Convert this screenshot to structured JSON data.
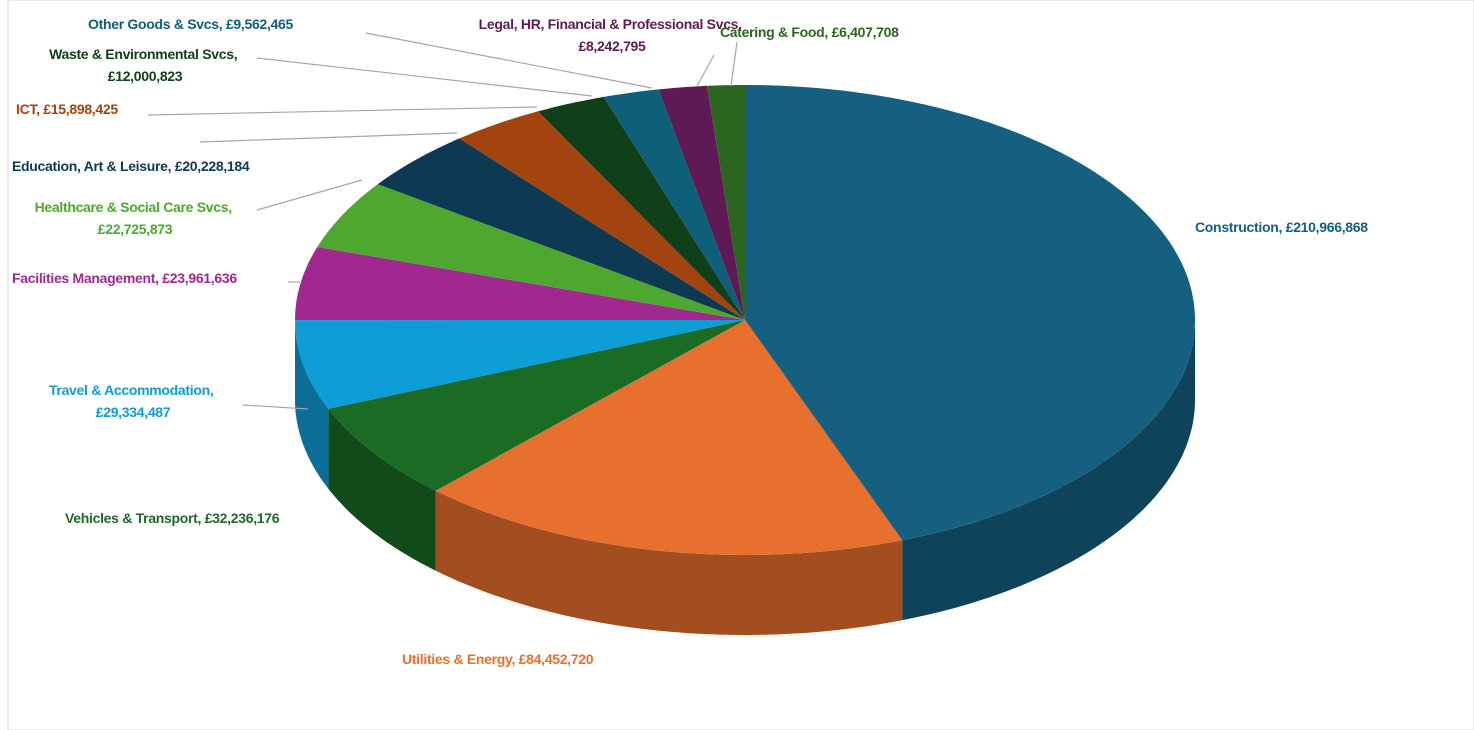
{
  "chart_data": {
    "type": "pie3d",
    "categories": [
      "Construction",
      "Utilities & Energy",
      "Vehicles & Transport",
      "Travel & Accommodation",
      "Facilities Management",
      "Healthcare & Social Care Svcs",
      "Education, Art & Leisure",
      "ICT",
      "Waste & Environmental Svcs",
      "Other Goods & Svcs",
      "Legal, HR, Financial & Professional Svcs",
      "Catering & Food"
    ],
    "values": [
      210966868,
      84452720,
      32236176,
      29334487,
      23961636,
      22725873,
      20228184,
      15898425,
      12000823,
      9562465,
      8242795,
      6407708
    ],
    "value_labels": [
      "£210,966,868",
      "£84,452,720",
      "£32,236,176",
      "£29,334,487",
      "£23,961,636",
      "£22,725,873",
      "£20,228,184",
      "£15,898,425",
      "£12,000,823",
      "£9,562,465",
      "£8,242,795",
      "£6,407,708"
    ],
    "label_separator": ", ",
    "colors": [
      "#155f80",
      "#e8702f",
      "#1a6b23",
      "#0f9dd6",
      "#a0288f",
      "#4ea72e",
      "#0d3a52",
      "#a3430f",
      "#10401a",
      "#0e5f7a",
      "#5e1a55",
      "#2b6520"
    ],
    "label_colors": [
      "#155f80",
      "#e8702f",
      "#1a6b23",
      "#0f9dd6",
      "#a0288f",
      "#4ea72e",
      "#0d3a52",
      "#a3430f",
      "#10401a",
      "#0e5f7a",
      "#5e1a55",
      "#2b6520"
    ]
  }
}
